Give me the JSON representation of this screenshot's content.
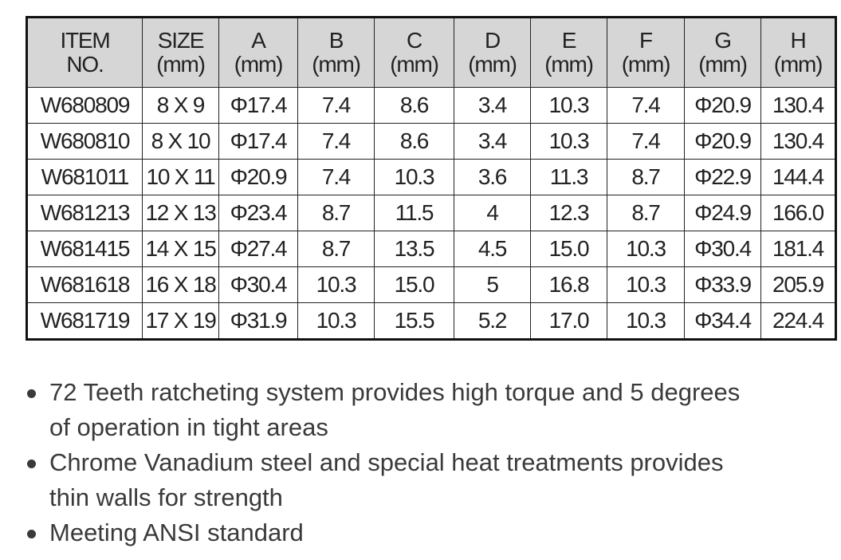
{
  "table": {
    "header": [
      [
        "ITEM",
        "NO."
      ],
      [
        "SIZE",
        "(mm)"
      ],
      [
        "A",
        "(mm)"
      ],
      [
        "B",
        "(mm)"
      ],
      [
        "C",
        "(mm)"
      ],
      [
        "D",
        "(mm)"
      ],
      [
        "E",
        "(mm)"
      ],
      [
        "F",
        "(mm)"
      ],
      [
        "G",
        "(mm)"
      ],
      [
        "H",
        "(mm)"
      ]
    ],
    "rows": [
      [
        "W680809",
        "8 X 9",
        "Φ17.4",
        "7.4",
        "8.6",
        "3.4",
        "10.3",
        "7.4",
        "Φ20.9",
        "130.4"
      ],
      [
        "W680810",
        "8 X 10",
        "Φ17.4",
        "7.4",
        "8.6",
        "3.4",
        "10.3",
        "7.4",
        "Φ20.9",
        "130.4"
      ],
      [
        "W681011",
        "10 X 11",
        "Φ20.9",
        "7.4",
        "10.3",
        "3.6",
        "11.3",
        "8.7",
        "Φ22.9",
        "144.4"
      ],
      [
        "W681213",
        "12 X 13",
        "Φ23.4",
        "8.7",
        "11.5",
        "4",
        "12.3",
        "8.7",
        "Φ24.9",
        "166.0"
      ],
      [
        "W681415",
        "14 X 15",
        "Φ27.4",
        "8.7",
        "13.5",
        "4.5",
        "15.0",
        "10.3",
        "Φ30.4",
        "181.4"
      ],
      [
        "W681618",
        "16 X 18",
        "Φ30.4",
        "10.3",
        "15.0",
        "5",
        "16.8",
        "10.3",
        "Φ33.9",
        "205.9"
      ],
      [
        "W681719",
        "17 X 19",
        "Φ31.9",
        "10.3",
        "15.5",
        "5.2",
        "17.0",
        "10.3",
        "Φ34.4",
        "224.4"
      ]
    ]
  },
  "bullets": [
    "72 Teeth ratcheting system provides high torque and 5 degrees of operation in tight areas",
    "Chrome Vanadium steel and special heat treatments provides thin walls for strength",
    "Meeting ANSI standard"
  ]
}
